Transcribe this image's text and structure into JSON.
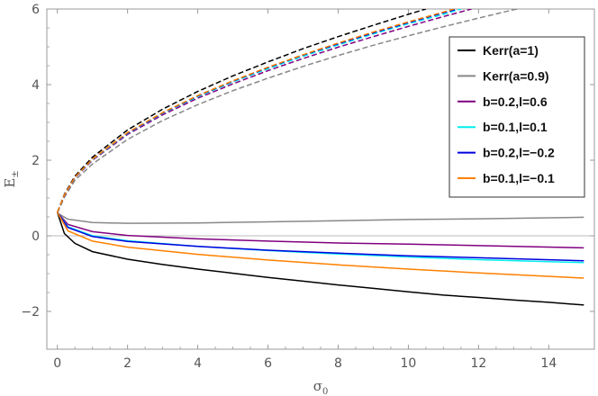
{
  "chart_data": {
    "type": "line",
    "title": "",
    "xlabel": "σ",
    "xlabel_sub": "0",
    "ylabel": "E",
    "ylabel_sub": "±",
    "xlim": [
      -0.3,
      15.3
    ],
    "ylim": [
      -3,
      6
    ],
    "xticks": [
      0,
      2,
      4,
      6,
      8,
      10,
      12,
      14
    ],
    "yticks": [
      -2,
      0,
      2,
      4,
      6
    ],
    "ytick_labels": [
      "−2",
      "0",
      "2",
      "4",
      "6"
    ],
    "grid": false,
    "zero_line": true,
    "legend_position": "top-right",
    "series": [
      {
        "name": "Kerr(a=1)",
        "color": "#000000",
        "minus": [
          [
            0,
            0.62
          ],
          [
            0.2,
            0.06
          ],
          [
            0.5,
            -0.2
          ],
          [
            1,
            -0.42
          ],
          [
            2,
            -0.62
          ],
          [
            3,
            -0.76
          ],
          [
            4,
            -0.88
          ],
          [
            5,
            -0.99
          ],
          [
            6,
            -1.1
          ],
          [
            7,
            -1.2
          ],
          [
            8,
            -1.3
          ],
          [
            9,
            -1.39
          ],
          [
            10,
            -1.48
          ],
          [
            11,
            -1.57
          ],
          [
            12,
            -1.63
          ],
          [
            13,
            -1.7
          ],
          [
            14,
            -1.76
          ],
          [
            15,
            -1.83
          ]
        ],
        "plus": [
          [
            0,
            0.62
          ],
          [
            0.2,
            1.1
          ],
          [
            0.5,
            1.58
          ],
          [
            1,
            2.08
          ],
          [
            2,
            2.8
          ],
          [
            3,
            3.35
          ],
          [
            4,
            3.82
          ],
          [
            5,
            4.23
          ],
          [
            6,
            4.6
          ],
          [
            7,
            4.95
          ],
          [
            8,
            5.27
          ],
          [
            9,
            5.57
          ],
          [
            10,
            5.86
          ],
          [
            10.5,
            6.0
          ]
        ]
      },
      {
        "name": "Kerr(a=0.9)",
        "color": "#888888",
        "minus": [
          [
            0,
            0.6
          ],
          [
            0.3,
            0.44
          ],
          [
            1,
            0.35
          ],
          [
            2,
            0.33
          ],
          [
            4,
            0.34
          ],
          [
            6,
            0.37
          ],
          [
            8,
            0.4
          ],
          [
            10,
            0.43
          ],
          [
            12,
            0.45
          ],
          [
            15,
            0.49
          ]
        ],
        "plus": [
          [
            0,
            0.6
          ],
          [
            0.2,
            1.02
          ],
          [
            0.5,
            1.47
          ],
          [
            1,
            1.9
          ],
          [
            2,
            2.55
          ],
          [
            3,
            3.05
          ],
          [
            4,
            3.47
          ],
          [
            5,
            3.84
          ],
          [
            6,
            4.17
          ],
          [
            7,
            4.48
          ],
          [
            8,
            4.77
          ],
          [
            9,
            5.04
          ],
          [
            10,
            5.29
          ],
          [
            11,
            5.53
          ],
          [
            12,
            5.76
          ],
          [
            13,
            5.98
          ],
          [
            13.1,
            6.0
          ]
        ]
      },
      {
        "name": "b=0.2,l=0.6",
        "color": "#800080",
        "minus": [
          [
            0,
            0.62
          ],
          [
            0.3,
            0.3
          ],
          [
            1,
            0.11
          ],
          [
            2,
            0.01
          ],
          [
            4,
            -0.08
          ],
          [
            6,
            -0.14
          ],
          [
            8,
            -0.19
          ],
          [
            10,
            -0.22
          ],
          [
            12,
            -0.26
          ],
          [
            15,
            -0.32
          ]
        ],
        "plus": [
          [
            0,
            0.62
          ],
          [
            0.2,
            1.07
          ],
          [
            0.5,
            1.53
          ],
          [
            1,
            2.0
          ],
          [
            2,
            2.68
          ],
          [
            3,
            3.2
          ],
          [
            4,
            3.64
          ],
          [
            5,
            4.02
          ],
          [
            6,
            4.37
          ],
          [
            7,
            4.69
          ],
          [
            8,
            4.99
          ],
          [
            9,
            5.27
          ],
          [
            10,
            5.54
          ],
          [
            11,
            5.8
          ],
          [
            11.8,
            6.0
          ]
        ]
      },
      {
        "name": "b=0.1,l=0.1",
        "color": "#00eeee",
        "minus": [
          [
            0,
            0.62
          ],
          [
            0.3,
            0.24
          ],
          [
            1,
            0.0
          ],
          [
            2,
            -0.13
          ],
          [
            4,
            -0.28
          ],
          [
            6,
            -0.39
          ],
          [
            8,
            -0.48
          ],
          [
            10,
            -0.56
          ],
          [
            12,
            -0.63
          ],
          [
            15,
            -0.71
          ]
        ],
        "plus": [
          [
            0,
            0.62
          ],
          [
            0.2,
            1.08
          ],
          [
            0.5,
            1.54
          ],
          [
            1,
            2.02
          ],
          [
            2,
            2.71
          ],
          [
            3,
            3.24
          ],
          [
            4,
            3.68
          ],
          [
            5,
            4.07
          ],
          [
            6,
            4.42
          ],
          [
            7,
            4.75
          ],
          [
            8,
            5.05
          ],
          [
            9,
            5.34
          ],
          [
            10,
            5.61
          ],
          [
            11,
            5.86
          ],
          [
            11.5,
            6.0
          ]
        ]
      },
      {
        "name": "b=0.2,l=−0.2",
        "color": "#0000dd",
        "minus": [
          [
            0,
            0.62
          ],
          [
            0.3,
            0.22
          ],
          [
            1,
            -0.02
          ],
          [
            2,
            -0.15
          ],
          [
            4,
            -0.28
          ],
          [
            6,
            -0.38
          ],
          [
            8,
            -0.46
          ],
          [
            10,
            -0.53
          ],
          [
            12,
            -0.58
          ],
          [
            15,
            -0.66
          ]
        ],
        "plus": [
          [
            0,
            0.62
          ],
          [
            0.2,
            1.08
          ],
          [
            0.5,
            1.55
          ],
          [
            1,
            2.03
          ],
          [
            2,
            2.72
          ],
          [
            3,
            3.25
          ],
          [
            4,
            3.7
          ],
          [
            5,
            4.09
          ],
          [
            6,
            4.45
          ],
          [
            7,
            4.78
          ],
          [
            8,
            5.08
          ],
          [
            9,
            5.37
          ],
          [
            10,
            5.64
          ],
          [
            11,
            5.9
          ],
          [
            11.4,
            6.0
          ]
        ]
      },
      {
        "name": "b=0.1,l=−0.1",
        "color": "#ff8000",
        "minus": [
          [
            0,
            0.62
          ],
          [
            0.3,
            0.13
          ],
          [
            1,
            -0.14
          ],
          [
            2,
            -0.3
          ],
          [
            4,
            -0.49
          ],
          [
            6,
            -0.64
          ],
          [
            8,
            -0.77
          ],
          [
            10,
            -0.88
          ],
          [
            12,
            -0.98
          ],
          [
            15,
            -1.12
          ]
        ],
        "plus": [
          [
            0,
            0.62
          ],
          [
            0.2,
            1.08
          ],
          [
            0.5,
            1.55
          ],
          [
            1,
            2.03
          ],
          [
            2,
            2.73
          ],
          [
            3,
            3.26
          ],
          [
            4,
            3.71
          ],
          [
            5,
            4.1
          ],
          [
            6,
            4.46
          ],
          [
            7,
            4.79
          ],
          [
            8,
            5.1
          ],
          [
            9,
            5.39
          ],
          [
            10,
            5.66
          ],
          [
            11,
            5.92
          ],
          [
            11.3,
            6.0
          ]
        ]
      }
    ]
  }
}
